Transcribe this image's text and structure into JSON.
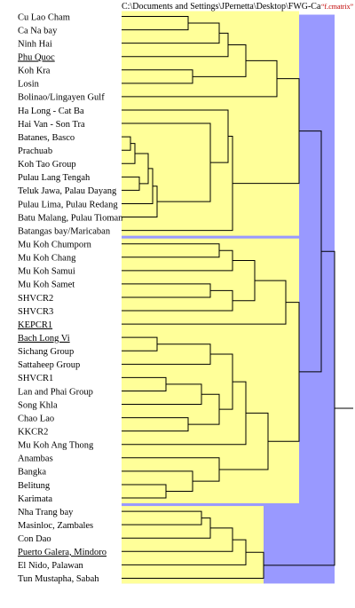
{
  "header": {
    "path": "C:\\Documents and Settings\\JPernetta\\Desktop\\FWG-Ca",
    "suffix": "“f.cmatrix”"
  },
  "colors": {
    "cluster_fill": "#ffff99",
    "background_fill": "#9999ff",
    "line": "#000000"
  },
  "leaves": [
    {
      "label": "Cu Lao Cham",
      "underlined": false
    },
    {
      "label": "Ca Na bay",
      "underlined": false
    },
    {
      "label": "Ninh Hai",
      "underlined": false
    },
    {
      "label": "Phu Quoc",
      "underlined": true
    },
    {
      "label": "Koh Kra",
      "underlined": false
    },
    {
      "label": "Losin",
      "underlined": false
    },
    {
      "label": "Bolinao/Lingayen Gulf",
      "underlined": false
    },
    {
      "label": "Ha Long - Cat Ba",
      "underlined": false
    },
    {
      "label": "Hai Van - Son Tra",
      "underlined": false
    },
    {
      "label": "Batanes, Basco",
      "underlined": false
    },
    {
      "label": "Prachuab",
      "underlined": false
    },
    {
      "label": "Koh Tao Group",
      "underlined": false
    },
    {
      "label": "Pulau Lang Tengah",
      "underlined": false
    },
    {
      "label": "Teluk Jawa, Palau Dayang",
      "underlined": false
    },
    {
      "label": "Pulau Lima, Pulau Redang",
      "underlined": false
    },
    {
      "label": "Batu Malang, Pulau Tioman",
      "underlined": false
    },
    {
      "label": "Batangas bay/Maricaban",
      "underlined": false
    },
    {
      "label": "Mu Koh Chumporn",
      "underlined": false
    },
    {
      "label": "Mu Koh Chang",
      "underlined": false
    },
    {
      "label": "Mu Koh Samui",
      "underlined": false
    },
    {
      "label": "Mu Koh Samet",
      "underlined": false
    },
    {
      "label": "SHVCR2",
      "underlined": false
    },
    {
      "label": "SHVCR3",
      "underlined": false
    },
    {
      "label": "KEPCR1",
      "underlined": true
    },
    {
      "label": "Bach Long Vi",
      "underlined": true
    },
    {
      "label": "Sichang Group",
      "underlined": false
    },
    {
      "label": "Sattaheep Group",
      "underlined": false
    },
    {
      "label": "SHVCR1",
      "underlined": false
    },
    {
      "label": "Lan and Phai Group",
      "underlined": false
    },
    {
      "label": "Song Khla",
      "underlined": false
    },
    {
      "label": "Chao Lao",
      "underlined": false
    },
    {
      "label": "KKCR2",
      "underlined": false
    },
    {
      "label": "Mu Koh Ang Thong",
      "underlined": false
    },
    {
      "label": "Anambas",
      "underlined": false
    },
    {
      "label": "Bangka",
      "underlined": false
    },
    {
      "label": "Belitung",
      "underlined": false
    },
    {
      "label": "Karimata",
      "underlined": false
    },
    {
      "label": "Nha Trang bay",
      "underlined": false
    },
    {
      "label": "Masinloc, Zambales",
      "underlined": false
    },
    {
      "label": "Con Dao",
      "underlined": false
    },
    {
      "label": "Puerto Galera, Mindoro",
      "underlined": true
    },
    {
      "label": "El Nido, Palawan",
      "underlined": false
    },
    {
      "label": "Tun Mustapha, Sabah",
      "underlined": false
    }
  ],
  "merges": [
    {
      "a": 0,
      "b": 1,
      "h": 15
    },
    {
      "a": 43,
      "b": 2,
      "h": 22
    },
    {
      "a": 44,
      "b": 3,
      "h": 24
    },
    {
      "a": 4,
      "b": 5,
      "h": 16
    },
    {
      "a": 45,
      "b": 46,
      "h": 28
    },
    {
      "a": 9,
      "b": 10,
      "h": 2
    },
    {
      "a": 48,
      "b": 11,
      "h": 3
    },
    {
      "a": 12,
      "b": 13,
      "h": 4
    },
    {
      "a": 49,
      "b": 50,
      "h": 6
    },
    {
      "a": 51,
      "b": 14,
      "h": 7
    },
    {
      "a": 52,
      "b": 15,
      "h": 8
    },
    {
      "a": 8,
      "b": 53,
      "h": 20
    },
    {
      "a": 7,
      "b": 54,
      "h": 24
    },
    {
      "a": 55,
      "b": 16,
      "h": 25
    },
    {
      "a": 47,
      "b": 6,
      "h": 35
    },
    {
      "a": 57,
      "b": 56,
      "h": 40
    },
    {
      "a": 17,
      "b": 18,
      "h": 22
    },
    {
      "a": 59,
      "b": 19,
      "h": 25
    },
    {
      "a": 20,
      "b": 21,
      "h": 20
    },
    {
      "a": 61,
      "b": 22,
      "h": 25
    },
    {
      "a": 60,
      "b": 62,
      "h": 30
    },
    {
      "a": 63,
      "b": 23,
      "h": 37
    },
    {
      "a": 24,
      "b": 25,
      "h": 8
    },
    {
      "a": 65,
      "b": 26,
      "h": 20
    },
    {
      "a": 27,
      "b": 28,
      "h": 10
    },
    {
      "a": 67,
      "b": 29,
      "h": 18
    },
    {
      "a": 30,
      "b": 31,
      "h": 15
    },
    {
      "a": 68,
      "b": 69,
      "h": 22
    },
    {
      "a": 66,
      "b": 70,
      "h": 25
    },
    {
      "a": 71,
      "b": 32,
      "h": 28
    },
    {
      "a": 35,
      "b": 36,
      "h": 10
    },
    {
      "a": 34,
      "b": 73,
      "h": 16
    },
    {
      "a": 33,
      "b": 74,
      "h": 22
    },
    {
      "a": 72,
      "b": 75,
      "h": 33
    },
    {
      "a": 37,
      "b": 38,
      "h": 18
    },
    {
      "a": 77,
      "b": 39,
      "h": 20
    },
    {
      "a": 78,
      "b": 40,
      "h": 25
    },
    {
      "a": 79,
      "b": 41,
      "h": 28
    },
    {
      "a": 80,
      "b": 42,
      "h": 32
    },
    {
      "a": 64,
      "b": 76,
      "h": 40
    },
    {
      "a": 58,
      "b": 82,
      "h": 45
    },
    {
      "a": 83,
      "b": 81,
      "h": 48
    }
  ]
}
